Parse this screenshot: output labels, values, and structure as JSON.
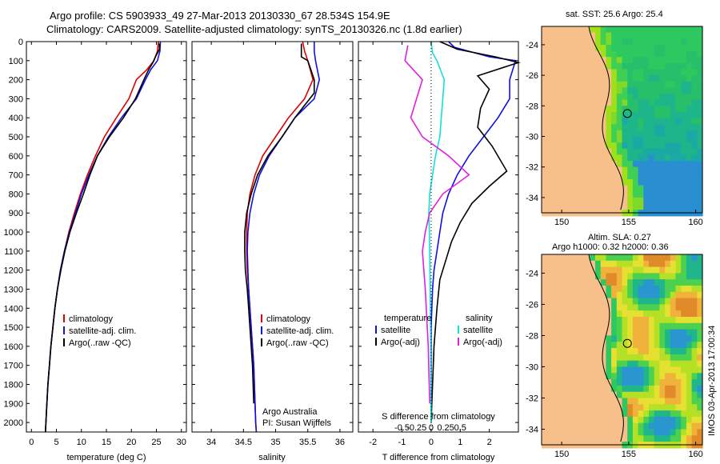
{
  "header": {
    "line1": "Argo profile: CS 5903933_49 27-Mar-2013 20130330_67 28.534S 154.9E",
    "line2": "Climatology: CARS2009. Satellite-adjusted climatology: synTS_20130326.nc (1.8d earlier)"
  },
  "colors": {
    "clim": "#e00000",
    "sat": "#1010e0",
    "argo": "#000000",
    "sat_s": "#10e0e0",
    "argo_s": "#e020e0",
    "land": "#f7c08a"
  },
  "chart_data": [
    {
      "type": "line",
      "panel": "temperature",
      "xlabel": "temperature (deg C)",
      "ylabel": "",
      "xlim": [
        -1,
        31
      ],
      "ylim": [
        2050,
        0
      ],
      "xticks": [
        0,
        5,
        10,
        15,
        20,
        25,
        30
      ],
      "yticks": [
        0,
        100,
        200,
        300,
        400,
        500,
        600,
        700,
        800,
        900,
        1000,
        1100,
        1200,
        1300,
        1400,
        1500,
        1600,
        1700,
        1800,
        1900,
        2000
      ],
      "legend": [
        "climatology",
        "satellite-adj. clim.",
        "Argo(..raw -QC)"
      ],
      "series": [
        {
          "name": "climatology",
          "color": "clim",
          "points": [
            [
              25.4,
              0
            ],
            [
              25.2,
              50
            ],
            [
              24.5,
              100
            ],
            [
              23,
              150
            ],
            [
              21,
              200
            ],
            [
              19.5,
              300
            ],
            [
              17,
              400
            ],
            [
              14.6,
              500
            ],
            [
              12.8,
              600
            ],
            [
              11.2,
              700
            ],
            [
              9.8,
              800
            ],
            [
              8.6,
              900
            ],
            [
              7.5,
              1000
            ],
            [
              6.6,
              1100
            ],
            [
              5.8,
              1200
            ],
            [
              5.2,
              1300
            ],
            [
              4.7,
              1400
            ],
            [
              4.3,
              1500
            ],
            [
              3.9,
              1600
            ],
            [
              3.6,
              1700
            ],
            [
              3.3,
              1800
            ],
            [
              3.1,
              1900
            ],
            [
              2.9,
              2000
            ],
            [
              2.8,
              2050
            ]
          ]
        },
        {
          "name": "satellite-adj. clim.",
          "color": "sat",
          "points": [
            [
              25.8,
              0
            ],
            [
              25.7,
              50
            ],
            [
              25.2,
              100
            ],
            [
              23.8,
              150
            ],
            [
              22.8,
              200
            ],
            [
              21,
              300
            ],
            [
              18,
              400
            ],
            [
              15.4,
              500
            ],
            [
              13.2,
              600
            ],
            [
              11.5,
              700
            ],
            [
              10,
              800
            ],
            [
              8.8,
              900
            ],
            [
              7.6,
              1000
            ],
            [
              6.6,
              1100
            ],
            [
              5.8,
              1200
            ],
            [
              5.2,
              1300
            ],
            [
              4.7,
              1400
            ],
            [
              4.3,
              1500
            ],
            [
              3.9,
              1600
            ],
            [
              3.6,
              1700
            ],
            [
              3.3,
              1800
            ],
            [
              3.1,
              1900
            ],
            [
              2.9,
              2000
            ],
            [
              2.8,
              2050
            ]
          ]
        },
        {
          "name": "Argo(..raw -QC)",
          "color": "argo",
          "points": [
            [
              25.6,
              10
            ],
            [
              25.6,
              40
            ],
            [
              24.8,
              80
            ],
            [
              24.3,
              110
            ],
            [
              23.4,
              150
            ],
            [
              22.5,
              200
            ],
            [
              20.8,
              300
            ],
            [
              18.4,
              400
            ],
            [
              15.6,
              500
            ],
            [
              13.2,
              600
            ],
            [
              11.7,
              700
            ],
            [
              10.4,
              800
            ],
            [
              9,
              900
            ],
            [
              7.7,
              1000
            ],
            [
              6.7,
              1100
            ],
            [
              5.9,
              1200
            ],
            [
              5.2,
              1300
            ],
            [
              4.7,
              1400
            ],
            [
              4.3,
              1500
            ],
            [
              3.9,
              1600
            ],
            [
              3.6,
              1700
            ],
            [
              3.3,
              1800
            ],
            [
              3.1,
              1900
            ],
            [
              2.9,
              2000
            ],
            [
              2.8,
              2050
            ]
          ]
        }
      ]
    },
    {
      "type": "line",
      "panel": "salinity",
      "xlabel": "salinity",
      "xlim": [
        33.7,
        36.2
      ],
      "ylim": [
        2050,
        0
      ],
      "xticks": [
        34,
        34.5,
        35,
        35.5,
        36
      ],
      "legend": [
        "climatology",
        "satellite-adj. clim.",
        "Argo(..raw -QC)"
      ],
      "annotation": [
        "Argo Australia",
        "PI: Susan Wijffels"
      ],
      "series": [
        {
          "name": "climatology",
          "color": "clim",
          "points": [
            [
              35.42,
              0
            ],
            [
              35.45,
              50
            ],
            [
              35.5,
              100
            ],
            [
              35.58,
              200
            ],
            [
              35.45,
              300
            ],
            [
              35.2,
              400
            ],
            [
              35,
              500
            ],
            [
              34.8,
              600
            ],
            [
              34.68,
              700
            ],
            [
              34.6,
              800
            ],
            [
              34.56,
              900
            ],
            [
              34.55,
              1000
            ],
            [
              34.55,
              1100
            ],
            [
              34.56,
              1200
            ],
            [
              34.58,
              1300
            ],
            [
              34.6,
              1400
            ],
            [
              34.62,
              1500
            ],
            [
              34.64,
              1600
            ],
            [
              34.66,
              1700
            ],
            [
              34.67,
              1800
            ],
            [
              34.68,
              1900
            ],
            [
              34.69,
              2000
            ],
            [
              34.7,
              2050
            ]
          ]
        },
        {
          "name": "satellite-adj. clim.",
          "color": "sat",
          "points": [
            [
              35.6,
              0
            ],
            [
              35.6,
              50
            ],
            [
              35.62,
              100
            ],
            [
              35.68,
              200
            ],
            [
              35.6,
              300
            ],
            [
              35.3,
              400
            ],
            [
              35.1,
              500
            ],
            [
              34.9,
              600
            ],
            [
              34.75,
              700
            ],
            [
              34.66,
              800
            ],
            [
              34.6,
              900
            ],
            [
              34.57,
              1000
            ],
            [
              34.56,
              1100
            ],
            [
              34.57,
              1200
            ],
            [
              34.58,
              1300
            ],
            [
              34.6,
              1400
            ],
            [
              34.62,
              1500
            ],
            [
              34.64,
              1600
            ],
            [
              34.66,
              1700
            ],
            [
              34.67,
              1800
            ],
            [
              34.68,
              1900
            ],
            [
              34.69,
              2000
            ],
            [
              34.7,
              2050
            ]
          ]
        },
        {
          "name": "Argo(..raw -QC)",
          "color": "argo",
          "points": [
            [
              35.4,
              10
            ],
            [
              35.4,
              80
            ],
            [
              35.5,
              100
            ],
            [
              35.6,
              200
            ],
            [
              35.6,
              270
            ],
            [
              35.3,
              400
            ],
            [
              35.1,
              500
            ],
            [
              34.88,
              600
            ],
            [
              34.72,
              700
            ],
            [
              34.62,
              800
            ],
            [
              34.55,
              900
            ],
            [
              34.52,
              1000
            ],
            [
              34.52,
              1100
            ],
            [
              34.53,
              1200
            ],
            [
              34.56,
              1300
            ],
            [
              34.58,
              1400
            ],
            [
              34.6,
              1500
            ],
            [
              34.62,
              1600
            ],
            [
              34.64,
              1700
            ],
            [
              34.65,
              1800
            ],
            [
              34.66,
              1900
            ]
          ]
        }
      ]
    },
    {
      "type": "line",
      "panel": "difference",
      "xlabel_bottom": "T difference from climatology",
      "xlabel_top": "S difference from climatology",
      "xlim": [
        -2.5,
        3.0
      ],
      "ylim": [
        2050,
        0
      ],
      "xticks_T": [
        -2,
        -1,
        0,
        1,
        2
      ],
      "xticks_S": [
        "-0.5",
        "-0.25",
        "0",
        "0.25",
        "0.5"
      ],
      "legend_left_title": "temperature",
      "legend_right_title": "salinity",
      "legend_left": [
        "satellite",
        "Argo(-adj)"
      ],
      "legend_right": [
        "satellite",
        "Argo(-adj)"
      ],
      "series": [
        {
          "name": "T satellite",
          "color": "sat",
          "points": [
            [
              0.6,
              0
            ],
            [
              0.8,
              30
            ],
            [
              2.0,
              80
            ],
            [
              2.9,
              100
            ],
            [
              2.7,
              200
            ],
            [
              2.7,
              300
            ],
            [
              2.3,
              400
            ],
            [
              1.8,
              500
            ],
            [
              1.3,
              600
            ],
            [
              0.9,
              700
            ],
            [
              0.6,
              800
            ],
            [
              0.4,
              900
            ],
            [
              0.3,
              1000
            ],
            [
              0.2,
              1100
            ],
            [
              0.1,
              1200
            ],
            [
              0.05,
              1300
            ],
            [
              0.0,
              1500
            ],
            [
              0,
              2000
            ]
          ]
        },
        {
          "name": "T Argo(-adj)",
          "color": "argo",
          "points": [
            [
              0.3,
              0
            ],
            [
              0.9,
              40
            ],
            [
              2.2,
              80
            ],
            [
              3.0,
              110
            ],
            [
              1.6,
              180
            ],
            [
              2.0,
              250
            ],
            [
              1.7,
              350
            ],
            [
              1.6,
              450
            ],
            [
              2.1,
              550
            ],
            [
              2.6,
              680
            ],
            [
              2.0,
              760
            ],
            [
              1.4,
              850
            ],
            [
              1.0,
              950
            ],
            [
              0.7,
              1050
            ],
            [
              0.5,
              1150
            ],
            [
              0.3,
              1250
            ],
            [
              0.2,
              1400
            ],
            [
              0.1,
              1600
            ],
            [
              0,
              2000
            ]
          ]
        },
        {
          "name": "S satellite",
          "color": "sat_s",
          "points": [
            [
              0.0,
              0
            ],
            [
              0.05,
              60
            ],
            [
              0.2,
              100
            ],
            [
              0.45,
              200
            ],
            [
              0.4,
              300
            ],
            [
              0.35,
              400
            ],
            [
              0.3,
              500
            ],
            [
              0.15,
              600
            ],
            [
              0.05,
              700
            ],
            [
              -0.05,
              800
            ],
            [
              -0.08,
              900
            ],
            [
              -0.06,
              1000
            ],
            [
              -0.05,
              1100
            ],
            [
              -0.03,
              1300
            ],
            [
              -0.02,
              1500
            ],
            [
              0,
              2000
            ]
          ]
        },
        {
          "name": "S Argo(-adj)",
          "color": "argo_s",
          "points": [
            [
              -0.8,
              20
            ],
            [
              -0.9,
              100
            ],
            [
              -0.3,
              200
            ],
            [
              -0.5,
              300
            ],
            [
              -0.7,
              400
            ],
            [
              -0.3,
              500
            ],
            [
              0.6,
              600
            ],
            [
              1.3,
              700
            ],
            [
              0.4,
              800
            ],
            [
              -0.05,
              900
            ],
            [
              -0.2,
              1000
            ],
            [
              -0.3,
              1100
            ],
            [
              -0.2,
              1300
            ],
            [
              -0.1,
              1600
            ],
            [
              -0.05,
              1900
            ]
          ]
        }
      ]
    },
    {
      "type": "heatmap",
      "panel": "map-sst",
      "title": "sat. SST: 25.6  Argo: 25.4",
      "xticks": [
        150,
        155,
        160
      ],
      "yticks": [
        -24,
        -26,
        -28,
        -30,
        -32,
        -34
      ],
      "xlim": [
        148.5,
        160.5
      ],
      "ylim": [
        -35,
        -22.8
      ],
      "marker": {
        "lon": 154.9,
        "lat": -28.5
      }
    },
    {
      "type": "heatmap",
      "panel": "map-sla",
      "title1": "Altim. SLA: 0.27",
      "title2": "Argo h1000: 0.32 h2000: 0.36",
      "xticks": [
        150,
        155,
        160
      ],
      "yticks": [
        -24,
        -26,
        -28,
        -30,
        -32,
        -34
      ],
      "xlim": [
        148.5,
        160.5
      ],
      "ylim": [
        -35,
        -22.8
      ],
      "marker": {
        "lon": 154.9,
        "lat": -28.5
      }
    }
  ],
  "side_text": "IMOS 03-Apr-2013 17:00:34"
}
